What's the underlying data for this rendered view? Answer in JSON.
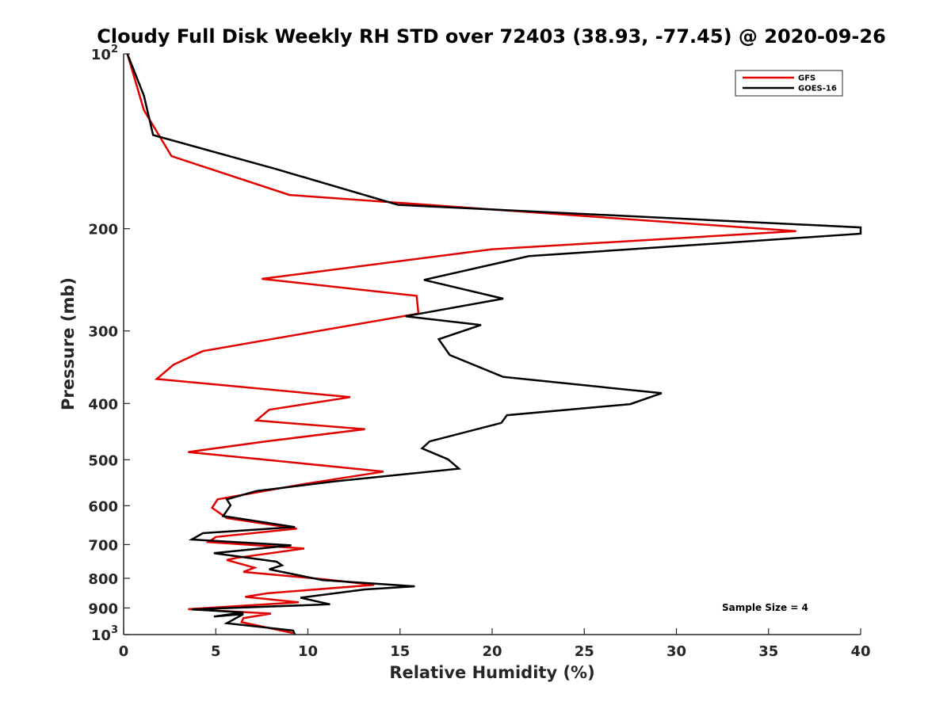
{
  "chart_data": {
    "type": "line",
    "title": "Cloudy Full Disk Weekly RH STD over 72403 (38.93, -77.45) @ 2020-09-26",
    "xlabel": "Relative Humidity (%)",
    "ylabel": "Pressure (mb)",
    "xlim": [
      0,
      40
    ],
    "ylim": [
      100,
      1000
    ],
    "y_scale": "log",
    "y_reversed": true,
    "xticks": [
      0,
      5,
      10,
      15,
      20,
      25,
      30,
      35,
      40
    ],
    "yticks": [
      {
        "value": 100,
        "base": "10",
        "exp": "2"
      },
      {
        "value": 200,
        "label": "200"
      },
      {
        "value": 300,
        "label": "300"
      },
      {
        "value": 400,
        "label": "400"
      },
      {
        "value": 500,
        "label": "500"
      },
      {
        "value": 600,
        "label": "600"
      },
      {
        "value": 700,
        "label": "700"
      },
      {
        "value": 800,
        "label": "800"
      },
      {
        "value": 900,
        "label": "900"
      },
      {
        "value": 1000,
        "base": "10",
        "exp": "3"
      }
    ],
    "grid": false,
    "legend_position": "top-right",
    "annotation": "Sample Size = 4",
    "series": [
      {
        "name": "GFS",
        "color": "#e00000",
        "points": [
          [
            0.2,
            100
          ],
          [
            1.1,
            125
          ],
          [
            2.6,
            150
          ],
          [
            9.0,
            175
          ],
          [
            36.5,
            202
          ],
          [
            20.0,
            217
          ],
          [
            7.5,
            244
          ],
          [
            15.9,
            261
          ],
          [
            16.0,
            280
          ],
          [
            4.3,
            325
          ],
          [
            2.7,
            343
          ],
          [
            1.8,
            363
          ],
          [
            12.3,
            390
          ],
          [
            7.9,
            410
          ],
          [
            7.2,
            428
          ],
          [
            13.1,
            443
          ],
          [
            7.7,
            465
          ],
          [
            3.5,
            485
          ],
          [
            8.0,
            501
          ],
          [
            14.1,
            524
          ],
          [
            9.7,
            551
          ],
          [
            5.1,
            585
          ],
          [
            4.8,
            605
          ],
          [
            5.6,
            630
          ],
          [
            9.4,
            657
          ],
          [
            5.0,
            679
          ],
          [
            4.6,
            693
          ],
          [
            9.8,
            711
          ],
          [
            6.1,
            738
          ],
          [
            5.6,
            744
          ],
          [
            7.1,
            767
          ],
          [
            6.5,
            780
          ],
          [
            10.9,
            803
          ],
          [
            13.6,
            821
          ],
          [
            7.8,
            849
          ],
          [
            6.6,
            861
          ],
          [
            9.5,
            880
          ],
          [
            3.5,
            904
          ],
          [
            8.0,
            920
          ],
          [
            6.5,
            937
          ],
          [
            6.4,
            952
          ],
          [
            9.2,
            994
          ]
        ]
      },
      {
        "name": "GOES-16",
        "color": "#000000",
        "points": [
          [
            0.2,
            100
          ],
          [
            1.1,
            118
          ],
          [
            1.6,
            138
          ],
          [
            8.3,
            158
          ],
          [
            14.9,
            182
          ],
          [
            40.0,
            199
          ],
          [
            40.0,
            204
          ],
          [
            22.0,
            223
          ],
          [
            16.3,
            245
          ],
          [
            20.6,
            264
          ],
          [
            15.3,
            283
          ],
          [
            19.4,
            293
          ],
          [
            17.1,
            310
          ],
          [
            17.7,
            330
          ],
          [
            20.6,
            360
          ],
          [
            29.2,
            384
          ],
          [
            27.5,
            401
          ],
          [
            20.8,
            419
          ],
          [
            20.5,
            432
          ],
          [
            16.6,
            465
          ],
          [
            16.2,
            478
          ],
          [
            17.6,
            499
          ],
          [
            18.2,
            518
          ],
          [
            11.4,
            545
          ],
          [
            7.2,
            566
          ],
          [
            5.6,
            585
          ],
          [
            5.8,
            599
          ],
          [
            5.4,
            625
          ],
          [
            9.3,
            653
          ],
          [
            4.3,
            669
          ],
          [
            3.7,
            686
          ],
          [
            9.1,
            702
          ],
          [
            4.9,
            724
          ],
          [
            8.3,
            749
          ],
          [
            8.6,
            760
          ],
          [
            7.9,
            772
          ],
          [
            10.8,
            806
          ],
          [
            15.8,
            826
          ],
          [
            13.1,
            836
          ],
          [
            9.6,
            864
          ],
          [
            11.2,
            887
          ],
          [
            3.7,
            905
          ],
          [
            6.5,
            916
          ],
          [
            4.9,
            931
          ],
          [
            6.5,
            922
          ],
          [
            5.6,
            956
          ],
          [
            9.2,
            984
          ],
          [
            9.3,
            1000
          ]
        ]
      }
    ]
  }
}
